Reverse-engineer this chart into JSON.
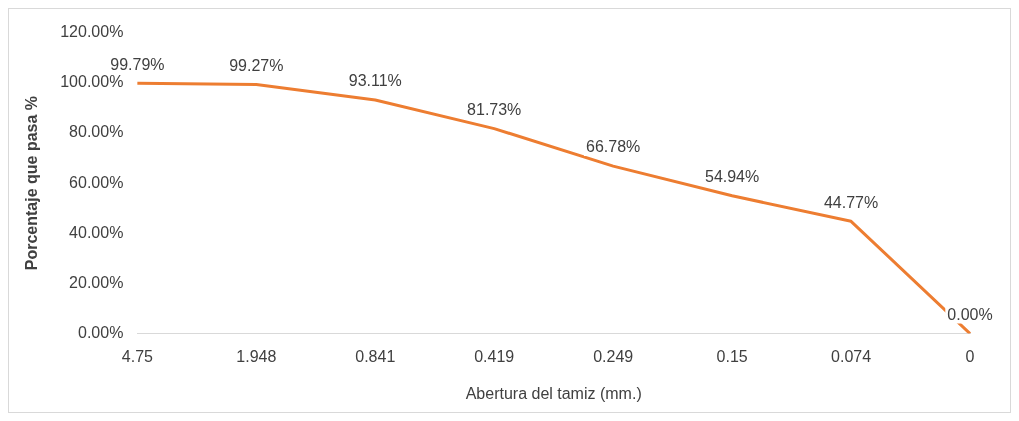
{
  "chart_data": {
    "type": "line",
    "xlabel": "Abertura del tamiz (mm.)",
    "ylabel": "Porcentaje que pasa %",
    "categories": [
      "4.75",
      "1.948",
      "0.841",
      "0.419",
      "0.249",
      "0.15",
      "0.074",
      "0"
    ],
    "series": [
      {
        "color": "#ed7d31",
        "values": [
          99.79,
          99.27,
          93.11,
          81.73,
          66.78,
          54.94,
          44.77,
          0
        ],
        "value_labels": [
          "99.79%",
          "99.27%",
          "93.11%",
          "81.73%",
          "66.78%",
          "54.94%",
          "44.77%",
          "0.00%"
        ]
      }
    ],
    "ylim": [
      0,
      120
    ],
    "yticks": [
      {
        "value": 0,
        "label": "0.00%"
      },
      {
        "value": 20,
        "label": "20.00%"
      },
      {
        "value": 40,
        "label": "40.00%"
      },
      {
        "value": 60,
        "label": "60.00%"
      },
      {
        "value": 80,
        "label": "80.00%"
      },
      {
        "value": 100,
        "label": "100.00%"
      },
      {
        "value": 120,
        "label": "120.00%"
      }
    ],
    "grid": false,
    "legend": false,
    "marker": "none",
    "line_style": "solid"
  }
}
